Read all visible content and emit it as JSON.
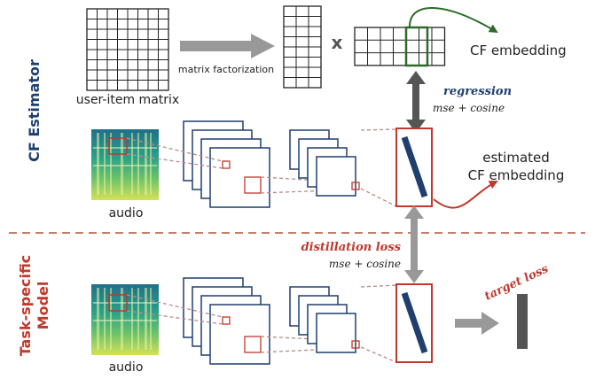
{
  "labels": {
    "user_item_matrix": "user-item matrix",
    "matrix_factorization": "matrix factorization",
    "times": "x",
    "cf_embedding": "CF embedding",
    "regression": "regression",
    "regression_loss": "mse + cosine",
    "audio_top": "audio",
    "estimated": "estimated",
    "estimated_cf_embedding": "CF embedding",
    "distillation_loss": "distillation loss",
    "distillation_formula": "mse + cosine",
    "target_loss": "target loss",
    "audio_bottom": "audio",
    "section_cf": "CF Estimator",
    "section_task_line1": "Task-specific",
    "section_task_line2": "Model"
  },
  "colors": {
    "blue_dark": "#1f3f6e",
    "red": "#c0392b",
    "green": "#2e6b2a",
    "gray_arrow": "#999999",
    "dark_arrow": "#555555",
    "dashed_divider": "#b5523a",
    "dotted_link": "#b88a8a"
  }
}
